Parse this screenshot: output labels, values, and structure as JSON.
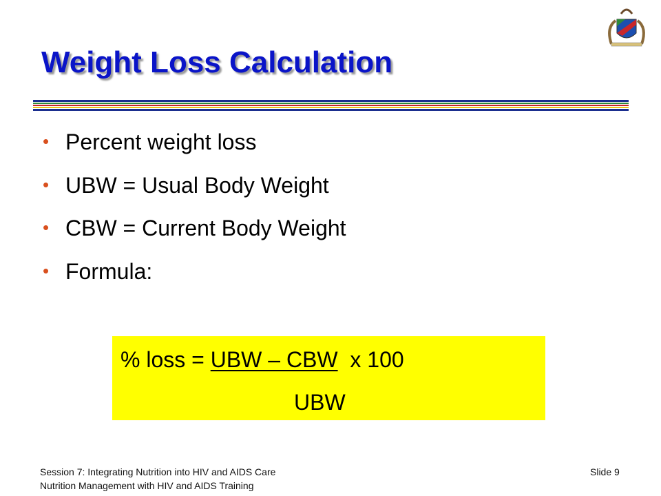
{
  "header": {
    "title": "Weight Loss Calculation"
  },
  "bullets": [
    "Percent weight loss",
    "UBW = Usual Body Weight",
    "CBW = Current Body Weight",
    "Formula:"
  ],
  "formula": {
    "prefix": "% loss = ",
    "numerator": "UBW – CBW",
    "suffix": "  x 100",
    "denominator": "UBW"
  },
  "footer": {
    "lines": [
      "Session 7: Integrating Nutrition into HIV and AIDS Care",
      "Nutrition Management with HIV and AIDS Training"
    ],
    "slide": "Slide 9"
  }
}
